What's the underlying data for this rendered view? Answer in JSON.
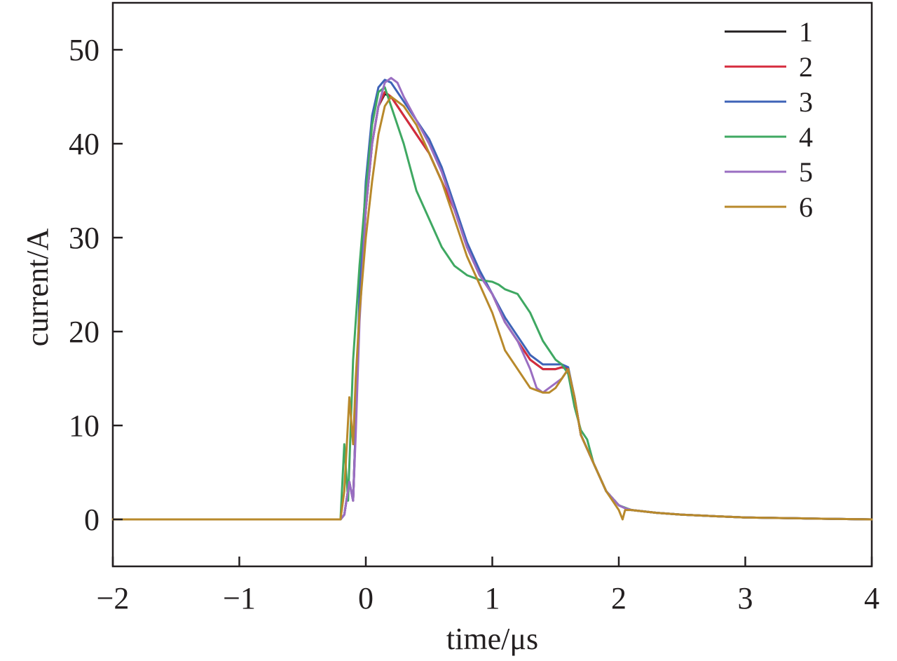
{
  "chart_data": {
    "type": "line",
    "title": "",
    "xlabel": "time/μs",
    "ylabel": "current/A",
    "xlim": [
      -2,
      4
    ],
    "ylim": [
      -5,
      55
    ],
    "xticks": [
      -2,
      -1,
      0,
      1,
      2,
      3,
      4
    ],
    "xtick_labels": [
      "−2",
      "−1",
      "0",
      "1",
      "2",
      "3",
      "4"
    ],
    "yticks": [
      0,
      10,
      20,
      30,
      40,
      50
    ],
    "ytick_labels": [
      "0",
      "10",
      "20",
      "30",
      "40",
      "50"
    ],
    "grid": false,
    "legend_position": "top-right",
    "series": [
      {
        "name": "1",
        "color": "#231f20",
        "x": [
          -2,
          -1.5,
          -1,
          -0.5,
          -0.2,
          -0.17,
          -0.13,
          -0.1,
          -0.08,
          -0.05,
          0,
          0.05,
          0.1,
          0.15,
          0.2,
          0.3,
          0.4,
          0.5,
          0.6,
          0.7,
          0.8,
          0.9,
          1.0,
          1.1,
          1.2,
          1.3,
          1.4,
          1.5,
          1.55,
          1.6,
          1.65,
          1.7,
          1.8,
          1.9,
          2.0,
          2.05,
          2.1,
          2.3,
          2.5,
          3.0,
          3.5,
          4.0
        ],
        "y": [
          0,
          0,
          0,
          0,
          0,
          0.5,
          4,
          2,
          10,
          22,
          33,
          40,
          44,
          45.3,
          45,
          43,
          41,
          39,
          36,
          33,
          29,
          26,
          24,
          21,
          19,
          17,
          16,
          16,
          16.2,
          16,
          13,
          9,
          6,
          3,
          1.5,
          1.2,
          1,
          0.7,
          0.5,
          0.2,
          0.1,
          0
        ]
      },
      {
        "name": "2",
        "color": "#d62b3d",
        "x": [
          -2,
          -1.5,
          -1,
          -0.5,
          -0.2,
          -0.17,
          -0.13,
          -0.1,
          -0.08,
          -0.05,
          0,
          0.05,
          0.1,
          0.15,
          0.2,
          0.3,
          0.4,
          0.5,
          0.6,
          0.7,
          0.8,
          0.9,
          1.0,
          1.1,
          1.2,
          1.3,
          1.4,
          1.5,
          1.55,
          1.6,
          1.65,
          1.7,
          1.8,
          1.9,
          2.0,
          2.05,
          2.1,
          2.3,
          2.5,
          3.0,
          3.5,
          4.0
        ],
        "y": [
          0,
          0,
          0,
          0,
          0,
          0.5,
          4,
          2,
          10,
          22,
          33,
          40,
          44,
          45.5,
          45,
          43,
          41,
          39,
          36,
          33,
          29,
          26,
          24,
          21,
          19,
          17,
          16,
          16,
          16.2,
          16,
          13,
          9,
          6,
          3,
          1.5,
          1.2,
          1,
          0.7,
          0.5,
          0.2,
          0.1,
          0
        ]
      },
      {
        "name": "3",
        "color": "#3e63b7",
        "x": [
          -2,
          -1.5,
          -1,
          -0.5,
          -0.2,
          -0.17,
          -0.13,
          -0.1,
          -0.08,
          -0.05,
          0,
          0.05,
          0.1,
          0.15,
          0.2,
          0.3,
          0.4,
          0.5,
          0.6,
          0.7,
          0.8,
          0.9,
          1.0,
          1.1,
          1.2,
          1.3,
          1.4,
          1.5,
          1.55,
          1.6,
          1.65,
          1.7,
          1.8,
          1.9,
          2.0,
          2.05,
          2.1,
          2.3,
          2.5,
          3.0,
          3.5,
          4.0
        ],
        "y": [
          0,
          0,
          0,
          0,
          0,
          0.5,
          4,
          2,
          10,
          24,
          36,
          43,
          46,
          46.8,
          46.5,
          44.5,
          42.5,
          40.5,
          37.5,
          33.5,
          29.5,
          26.5,
          24,
          21.5,
          19.5,
          17.5,
          16.5,
          16.5,
          16.5,
          16.2,
          13,
          9,
          6,
          3,
          1.5,
          1.2,
          1,
          0.7,
          0.5,
          0.2,
          0.1,
          0
        ]
      },
      {
        "name": "4",
        "color": "#3fa862",
        "x": [
          -2,
          -1.5,
          -1,
          -0.5,
          -0.2,
          -0.17,
          -0.14,
          -0.1,
          -0.05,
          0,
          0.05,
          0.1,
          0.15,
          0.2,
          0.25,
          0.3,
          0.4,
          0.5,
          0.6,
          0.7,
          0.8,
          0.9,
          1.0,
          1.05,
          1.1,
          1.2,
          1.3,
          1.4,
          1.5,
          1.55,
          1.6,
          1.65,
          1.7,
          1.75,
          1.8,
          1.9,
          2.0,
          2.1,
          2.3,
          2.5,
          3.0,
          3.5,
          4.0
        ],
        "y": [
          0,
          0,
          0,
          0,
          0,
          8,
          2,
          17,
          27,
          35,
          42,
          45.5,
          46,
          44,
          42,
          40,
          35,
          32,
          29,
          27,
          26,
          25.5,
          25.3,
          25,
          24.5,
          24,
          22,
          19,
          17,
          16.5,
          15.5,
          12,
          9.5,
          8.5,
          6,
          3,
          1.5,
          1,
          0.7,
          0.5,
          0.2,
          0.1,
          0
        ]
      },
      {
        "name": "5",
        "color": "#9a6ec2",
        "x": [
          -2,
          -1.5,
          -1,
          -0.5,
          -0.2,
          -0.17,
          -0.13,
          -0.1,
          -0.08,
          -0.05,
          0,
          0.05,
          0.1,
          0.15,
          0.2,
          0.25,
          0.3,
          0.4,
          0.5,
          0.6,
          0.7,
          0.8,
          0.9,
          1.0,
          1.1,
          1.2,
          1.3,
          1.35,
          1.4,
          1.5,
          1.55,
          1.6,
          1.65,
          1.7,
          1.8,
          1.9,
          2.0,
          2.05,
          2.1,
          2.3,
          2.5,
          3.0,
          3.5,
          4.0
        ],
        "y": [
          0,
          0,
          0,
          0,
          0,
          0.5,
          4,
          2,
          9,
          21,
          33,
          40,
          44,
          46.5,
          47,
          46.5,
          45,
          42.5,
          40,
          37,
          33,
          29,
          26,
          24,
          21,
          19,
          16,
          14,
          13.5,
          14.5,
          15,
          16,
          13,
          9,
          6,
          3,
          1.5,
          1.2,
          1,
          0.7,
          0.5,
          0.2,
          0.1,
          0
        ]
      },
      {
        "name": "6",
        "color": "#b8892b",
        "x": [
          -2,
          -1.5,
          -1,
          -0.5,
          -0.2,
          -0.17,
          -0.13,
          -0.1,
          -0.08,
          -0.05,
          0,
          0.05,
          0.1,
          0.15,
          0.2,
          0.3,
          0.4,
          0.5,
          0.6,
          0.7,
          0.8,
          0.9,
          1.0,
          1.1,
          1.2,
          1.3,
          1.4,
          1.45,
          1.5,
          1.55,
          1.6,
          1.65,
          1.7,
          1.8,
          1.9,
          2.0,
          2.03,
          2.05,
          2.1,
          2.3,
          2.5,
          3.0,
          3.5,
          4.0
        ],
        "y": [
          0,
          0,
          0,
          0,
          0,
          3,
          13,
          8,
          15,
          22,
          30,
          36,
          41,
          44,
          45,
          44,
          42,
          39,
          36,
          32,
          28,
          25,
          22,
          18,
          16,
          14,
          13.5,
          13.5,
          14,
          15,
          16,
          13,
          9,
          6,
          3,
          1,
          0,
          1,
          1,
          0.7,
          0.5,
          0.2,
          0.1,
          0
        ]
      }
    ]
  }
}
